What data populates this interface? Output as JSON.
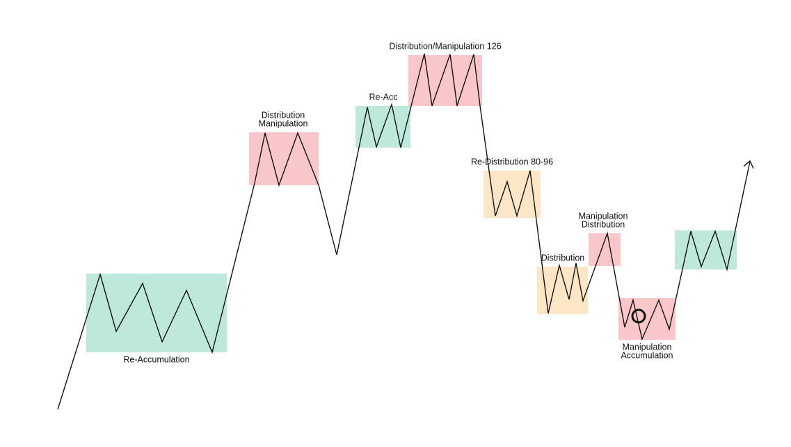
{
  "zones": [
    {
      "lines": [
        "Re-Accumulation"
      ]
    },
    {
      "lines": [
        "Distribution",
        "Manipulation"
      ]
    },
    {
      "lines": [
        "Re-Acc"
      ]
    },
    {
      "lines": [
        "Distribution/Manipulation 126"
      ]
    },
    {
      "lines": [
        "Re-Distribution 80-96"
      ]
    },
    {
      "lines": [
        "Distribution"
      ]
    },
    {
      "lines": [
        "Manipulation",
        "Distribution"
      ]
    },
    {
      "lines": [
        "Manipulation",
        "Accumulation"
      ]
    }
  ]
}
